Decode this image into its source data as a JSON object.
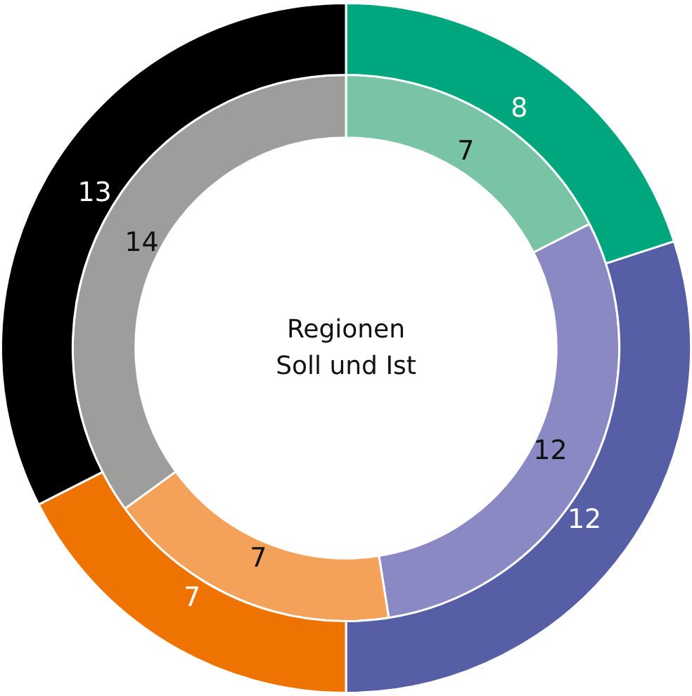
{
  "chart_data": {
    "type": "donut",
    "title": "Regionen",
    "subtitle": "Soll und Ist",
    "categories": [
      null,
      null,
      null,
      null
    ],
    "series": [
      {
        "colors": [
          "#00a67e",
          "#565ea6",
          "#ef7300",
          "#000000"
        ],
        "values": [
          8,
          12,
          7,
          13
        ]
      },
      {
        "colors": [
          "#78c4a5",
          "#8b89c4",
          "#f4a25a",
          "#9d9e9c"
        ],
        "values": [
          7,
          12,
          7,
          14
        ]
      }
    ],
    "data_labels": true,
    "legend": false
  }
}
